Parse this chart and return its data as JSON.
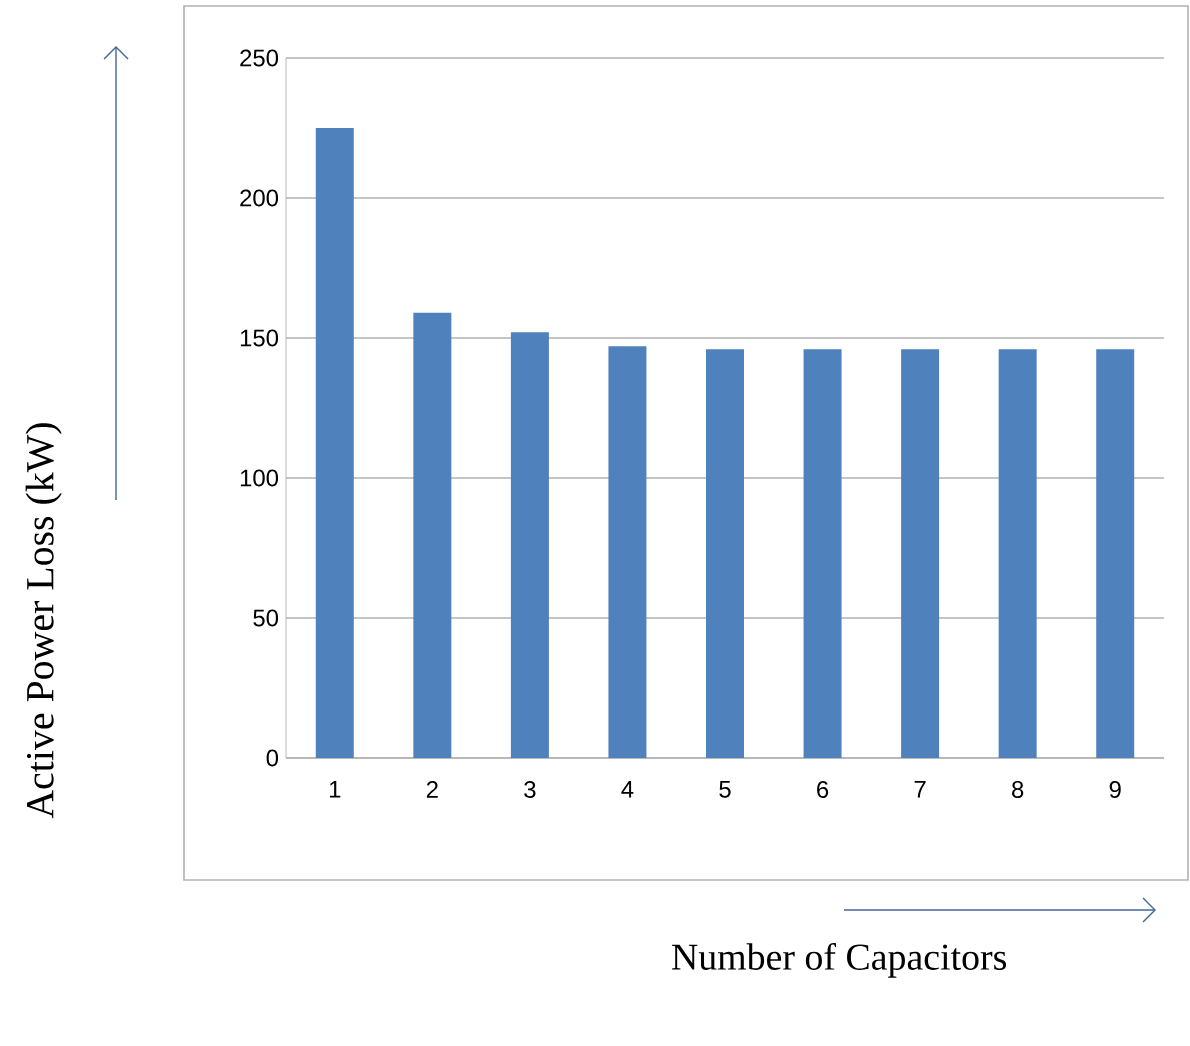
{
  "chart_data": {
    "type": "bar",
    "xlabel": "Number of Capacitors",
    "ylabel": "Active Power Loss (kW)",
    "categories": [
      "1",
      "2",
      "3",
      "4",
      "5",
      "6",
      "7",
      "8",
      "9"
    ],
    "values": [
      225,
      159,
      152,
      147,
      146,
      146,
      146,
      146,
      146
    ],
    "color": "#4f81bd",
    "ylim": [
      0,
      250
    ],
    "yticks": [
      0,
      50,
      100,
      150,
      200,
      250
    ],
    "grid": "y"
  }
}
